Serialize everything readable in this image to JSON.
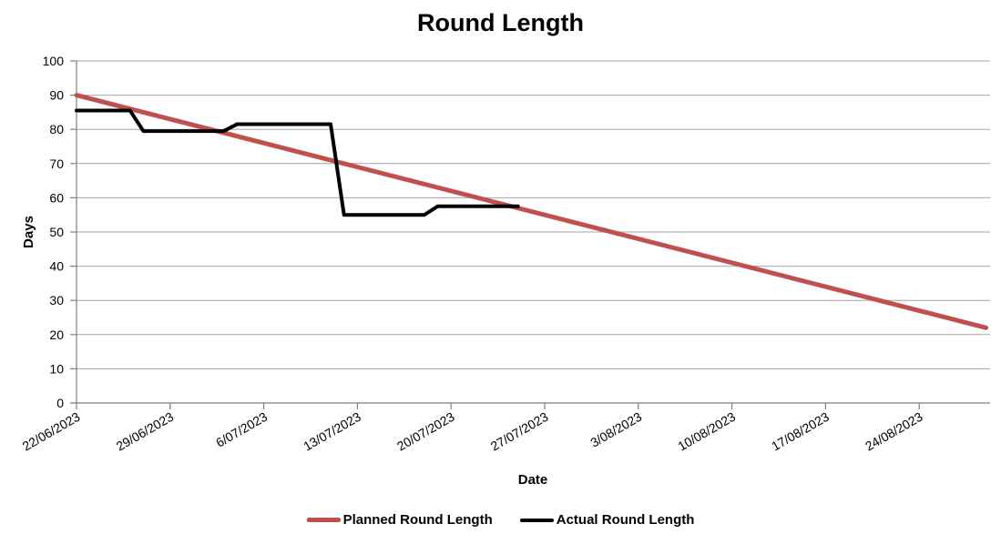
{
  "chart_data": {
    "type": "line",
    "title": "Round Length",
    "xlabel": "Date",
    "ylabel": "Days",
    "ylim": [
      0,
      100
    ],
    "y_ticks": [
      0,
      10,
      20,
      30,
      40,
      50,
      60,
      70,
      80,
      90,
      100
    ],
    "x_domain_days": [
      0,
      68.3
    ],
    "x_ticks": [
      {
        "day": 0,
        "label": "22/06/2023"
      },
      {
        "day": 7,
        "label": "29/06/2023"
      },
      {
        "day": 14,
        "label": "6/07/2023"
      },
      {
        "day": 21,
        "label": "13/07/2023"
      },
      {
        "day": 28,
        "label": "20/07/2023"
      },
      {
        "day": 35,
        "label": "27/07/2023"
      },
      {
        "day": 42,
        "label": "3/08/2023"
      },
      {
        "day": 49,
        "label": "10/08/2023"
      },
      {
        "day": 56,
        "label": "17/08/2023"
      },
      {
        "day": 63,
        "label": "24/08/2023"
      }
    ],
    "grid": "horizontal-only",
    "legend_position": "bottom-center",
    "colors": {
      "background": "#FFFFFF",
      "gridline": "#A6A6A6",
      "axis": "#808080",
      "text": "#000000"
    },
    "series": [
      {
        "name": "Planned Round Length",
        "color": "#C0504D",
        "points": [
          {
            "date": "22/06/2023",
            "day": 0,
            "value": 90
          },
          {
            "date": "29/08/2023",
            "day": 68,
            "value": 22
          }
        ]
      },
      {
        "name": "Actual Round Length",
        "color": "#000000",
        "points": [
          {
            "date": "22/06/2023",
            "day": 0,
            "value": 85.5
          },
          {
            "date": "26/06/2023",
            "day": 4,
            "value": 85.5
          },
          {
            "date": "27/06/2023",
            "day": 5,
            "value": 79.5
          },
          {
            "date": "3/07/2023",
            "day": 11,
            "value": 79.5
          },
          {
            "date": "4/07/2023",
            "day": 12,
            "value": 81.5
          },
          {
            "date": "11/07/2023",
            "day": 19,
            "value": 81.5
          },
          {
            "date": "12/07/2023",
            "day": 20,
            "value": 55
          },
          {
            "date": "18/07/2023",
            "day": 26,
            "value": 55
          },
          {
            "date": "19/07/2023",
            "day": 27,
            "value": 57.5
          },
          {
            "date": "25/07/2023",
            "day": 33,
            "value": 57.5
          }
        ]
      }
    ]
  }
}
